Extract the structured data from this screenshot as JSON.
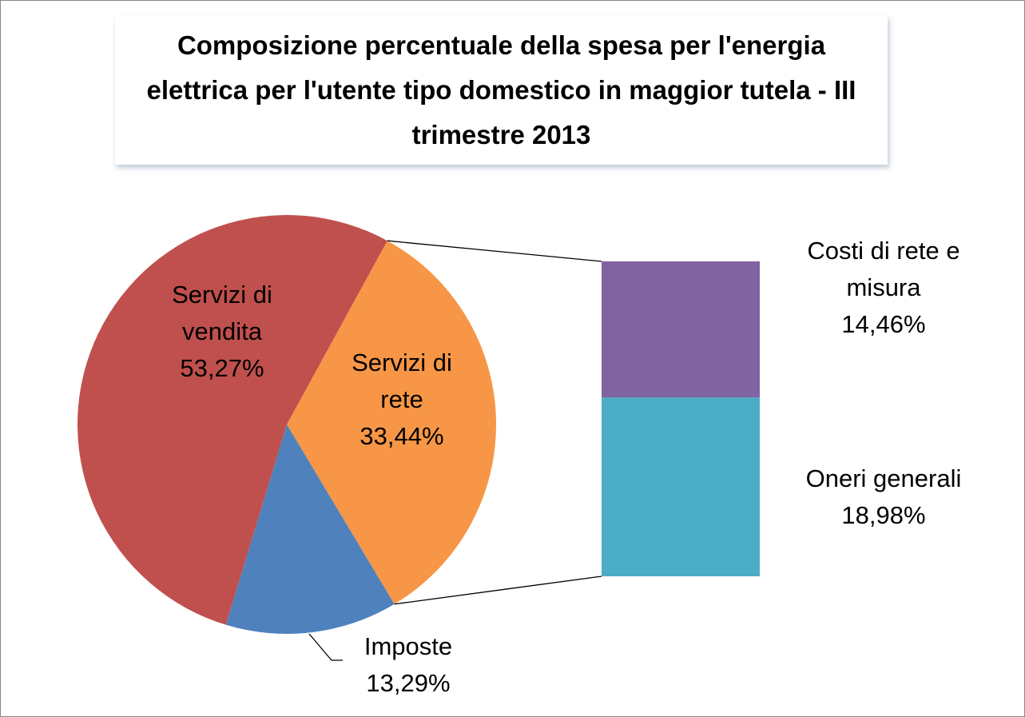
{
  "chart_data": {
    "type": "pie-of-bar",
    "title": "Composizione percentuale della spesa per l'energia elettrica per l'utente tipo domestico in maggior tutela -  III trimestre 2013",
    "categories": [
      "Servizi di rete",
      "Imposte",
      "Servizi di vendita"
    ],
    "values": [
      33.44,
      13.29,
      53.27
    ],
    "value_labels": [
      "33,44%",
      "13,29%",
      "53,27%"
    ],
    "colors": [
      "#f79646",
      "#4f81bd",
      "#c0504d"
    ],
    "breakdown": {
      "categories": [
        "Costi di rete e misura",
        "Oneri generali"
      ],
      "values": [
        14.46,
        18.98
      ],
      "value_labels": [
        "14,46%",
        "18,98%"
      ],
      "colors": [
        "#8064a2",
        "#4bacc6"
      ]
    }
  }
}
